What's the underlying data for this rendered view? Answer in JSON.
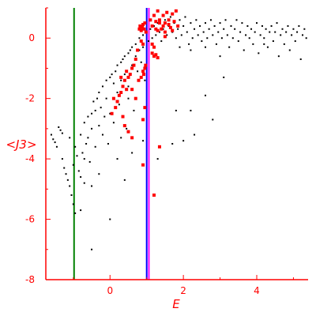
{
  "chart_data": {
    "type": "scatter",
    "xlabel": "E",
    "ylabel": "<J3>",
    "xlim": [
      -1.75,
      5.4
    ],
    "ylim": [
      -8,
      1
    ],
    "xticks": [
      0,
      2,
      4
    ],
    "yticks": [
      0,
      -2,
      -4,
      -6,
      -8
    ],
    "grid": false,
    "colors": {
      "axis": "#ff0000",
      "green_line": "#008000",
      "blue_line": "#0000ff",
      "magenta_line": "#ff00ff",
      "black_points": "#000000",
      "red_points": "#ff0000"
    },
    "vlines": [
      {
        "x": -0.98,
        "color": "#008000"
      },
      {
        "x": 1.0,
        "color": "#0000ff"
      },
      {
        "x": 1.06,
        "color": "#ff00ff"
      }
    ],
    "series": [
      {
        "color": "#000000",
        "points": [
          [
            -1.6,
            -3.2
          ],
          [
            -1.55,
            -3.35
          ],
          [
            -1.5,
            -3.45
          ],
          [
            -1.45,
            -3.6
          ],
          [
            -1.4,
            -2.95
          ],
          [
            -1.35,
            -3.05
          ],
          [
            -1.3,
            -3.15
          ],
          [
            -1.3,
            -4.0
          ],
          [
            -1.25,
            -4.3
          ],
          [
            -1.2,
            -4.5
          ],
          [
            -1.15,
            -4.7
          ],
          [
            -1.1,
            -4.9
          ],
          [
            -1.05,
            -5.2
          ],
          [
            -1.0,
            -5.5
          ],
          [
            -1.0,
            -4.2
          ],
          [
            -1.1,
            -3.3
          ],
          [
            -0.95,
            -3.6
          ],
          [
            -0.9,
            -3.9
          ],
          [
            -0.85,
            -4.4
          ],
          [
            -0.8,
            -4.6
          ],
          [
            -0.8,
            -3.2
          ],
          [
            -0.75,
            -3.8
          ],
          [
            -0.7,
            -2.8
          ],
          [
            -0.7,
            -4.0
          ],
          [
            -0.65,
            -3.5
          ],
          [
            -0.6,
            -2.6
          ],
          [
            -0.6,
            -3.3
          ],
          [
            -0.55,
            -4.1
          ],
          [
            -0.5,
            -2.5
          ],
          [
            -0.5,
            -3.0
          ],
          [
            -0.45,
            -2.1
          ],
          [
            -0.4,
            -2.4
          ],
          [
            -0.4,
            -3.6
          ],
          [
            -0.35,
            -2.0
          ],
          [
            -0.3,
            -1.8
          ],
          [
            -0.3,
            -2.9
          ],
          [
            -0.25,
            -2.3
          ],
          [
            -0.2,
            -1.6
          ],
          [
            -0.2,
            -3.2
          ],
          [
            -0.15,
            -2.6
          ],
          [
            -0.1,
            -1.4
          ],
          [
            -0.1,
            -2.0
          ],
          [
            -0.05,
            -3.5
          ],
          [
            0.0,
            -1.3
          ],
          [
            0.0,
            -2.5
          ],
          [
            0.05,
            -1.2
          ],
          [
            0.1,
            -1.5
          ],
          [
            0.1,
            -2.8
          ],
          [
            0.15,
            -1.1
          ],
          [
            0.2,
            -0.9
          ],
          [
            0.2,
            -1.8
          ],
          [
            0.25,
            -2.2
          ],
          [
            0.3,
            -0.8
          ],
          [
            0.3,
            -1.4
          ],
          [
            0.35,
            -0.7
          ],
          [
            0.4,
            -0.6
          ],
          [
            0.4,
            -1.2
          ],
          [
            0.45,
            -3.0
          ],
          [
            0.5,
            -0.5
          ],
          [
            0.5,
            -1.6
          ],
          [
            0.55,
            -0.4
          ],
          [
            0.6,
            -0.3
          ],
          [
            0.6,
            -0.9
          ],
          [
            0.65,
            -2.4
          ],
          [
            0.7,
            -0.2
          ],
          [
            0.7,
            -0.6
          ],
          [
            0.75,
            -1.1
          ],
          [
            0.8,
            0.0
          ],
          [
            0.8,
            -0.4
          ],
          [
            0.85,
            -0.8
          ],
          [
            0.9,
            0.1
          ],
          [
            0.9,
            -0.3
          ],
          [
            0.95,
            -1.4
          ],
          [
            1.0,
            0.2
          ],
          [
            1.05,
            -0.1
          ],
          [
            1.1,
            0.3
          ],
          [
            1.15,
            0.0
          ],
          [
            1.2,
            0.4
          ],
          [
            1.25,
            0.1
          ],
          [
            1.3,
            0.5
          ],
          [
            1.35,
            0.2
          ],
          [
            1.4,
            -0.1
          ],
          [
            1.45,
            0.3
          ],
          [
            1.5,
            0.6
          ],
          [
            1.55,
            0.1
          ],
          [
            1.6,
            0.4
          ],
          [
            1.65,
            0.7
          ],
          [
            1.7,
            0.2
          ],
          [
            1.75,
            0.5
          ],
          [
            1.8,
            0.0
          ],
          [
            1.85,
            0.3
          ],
          [
            1.9,
            0.6
          ],
          [
            1.95,
            0.1
          ],
          [
            2.0,
            0.4
          ],
          [
            2.05,
            0.7
          ],
          [
            2.1,
            0.2
          ],
          [
            2.15,
            -0.2
          ],
          [
            2.2,
            0.5
          ],
          [
            2.25,
            0.0
          ],
          [
            2.3,
            0.3
          ],
          [
            2.35,
            0.6
          ],
          [
            2.4,
            0.1
          ],
          [
            2.45,
            0.4
          ],
          [
            2.5,
            -0.1
          ],
          [
            2.55,
            0.2
          ],
          [
            2.6,
            0.5
          ],
          [
            2.65,
            0.0
          ],
          [
            2.7,
            0.3
          ],
          [
            2.75,
            0.6
          ],
          [
            2.8,
            0.1
          ],
          [
            2.85,
            0.4
          ],
          [
            2.9,
            -0.2
          ],
          [
            2.95,
            0.2
          ],
          [
            3.0,
            0.5
          ],
          [
            3.05,
            0.0
          ],
          [
            3.1,
            0.3
          ],
          [
            3.15,
            0.6
          ],
          [
            3.2,
            0.1
          ],
          [
            3.25,
            -0.3
          ],
          [
            3.3,
            0.4
          ],
          [
            3.35,
            0.0
          ],
          [
            3.4,
            0.3
          ],
          [
            3.45,
            0.6
          ],
          [
            3.5,
            -0.1
          ],
          [
            3.55,
            0.2
          ],
          [
            3.6,
            0.5
          ],
          [
            3.65,
            -0.4
          ],
          [
            3.7,
            0.1
          ],
          [
            3.75,
            0.4
          ],
          [
            3.8,
            0.0
          ],
          [
            3.85,
            0.3
          ],
          [
            3.9,
            -0.2
          ],
          [
            3.95,
            0.2
          ],
          [
            4.0,
            0.5
          ],
          [
            4.05,
            -0.5
          ],
          [
            4.1,
            0.1
          ],
          [
            4.15,
            0.4
          ],
          [
            4.2,
            0.0
          ],
          [
            4.25,
            0.3
          ],
          [
            4.3,
            -0.3
          ],
          [
            4.35,
            0.2
          ],
          [
            4.4,
            0.4
          ],
          [
            4.45,
            -0.1
          ],
          [
            4.5,
            0.2
          ],
          [
            4.55,
            0.5
          ],
          [
            4.6,
            -0.6
          ],
          [
            4.65,
            0.1
          ],
          [
            4.7,
            0.3
          ],
          [
            4.75,
            -0.2
          ],
          [
            4.8,
            0.2
          ],
          [
            4.85,
            0.4
          ],
          [
            4.9,
            -0.4
          ],
          [
            4.95,
            0.1
          ],
          [
            5.0,
            0.3
          ],
          [
            5.05,
            -0.1
          ],
          [
            5.1,
            0.2
          ],
          [
            5.15,
            0.4
          ],
          [
            5.2,
            -0.7
          ],
          [
            5.25,
            0.1
          ],
          [
            5.3,
            0.3
          ],
          [
            5.35,
            0.0
          ],
          [
            3.0,
            -0.6
          ],
          [
            2.2,
            -0.4
          ],
          [
            2.6,
            -0.3
          ],
          [
            4.2,
            -0.2
          ],
          [
            1.9,
            -0.3
          ],
          [
            0.4,
            -4.7
          ],
          [
            0.0,
            -6.0
          ],
          [
            -0.5,
            -7.0
          ],
          [
            -0.95,
            -5.8
          ],
          [
            -0.5,
            -4.9
          ],
          [
            -0.8,
            -5.7
          ],
          [
            1.3,
            -4.0
          ],
          [
            1.7,
            -3.5
          ],
          [
            2.0,
            -3.4
          ],
          [
            2.3,
            -3.2
          ],
          [
            2.2,
            -2.4
          ],
          [
            1.8,
            -2.4
          ],
          [
            2.6,
            -1.9
          ],
          [
            2.8,
            -2.7
          ],
          [
            3.1,
            -1.3
          ],
          [
            0.6,
            -3.8
          ],
          [
            0.9,
            -3.4
          ],
          [
            0.2,
            -4.0
          ],
          [
            -0.3,
            -4.5
          ],
          [
            -0.7,
            -4.8
          ],
          [
            0.5,
            -2.0
          ],
          [
            0.3,
            -3.3
          ]
        ]
      },
      {
        "color": "#ff0000",
        "points": [
          [
            0.8,
            0.3
          ],
          [
            0.82,
            0.4
          ],
          [
            0.85,
            0.25
          ],
          [
            0.88,
            0.35
          ],
          [
            0.9,
            0.45
          ],
          [
            0.93,
            0.3
          ],
          [
            0.95,
            0.5
          ],
          [
            0.98,
            0.2
          ],
          [
            1.1,
            0.6
          ],
          [
            1.15,
            0.4
          ],
          [
            1.2,
            0.75
          ],
          [
            1.25,
            0.55
          ],
          [
            1.3,
            0.9
          ],
          [
            1.35,
            0.6
          ],
          [
            1.4,
            0.3
          ],
          [
            1.45,
            0.75
          ],
          [
            1.5,
            0.5
          ],
          [
            1.55,
            0.85
          ],
          [
            1.6,
            0.6
          ],
          [
            1.65,
            0.35
          ],
          [
            1.7,
            0.8
          ],
          [
            1.75,
            0.55
          ],
          [
            1.8,
            0.9
          ],
          [
            1.85,
            0.4
          ],
          [
            1.3,
            0.25
          ],
          [
            1.35,
            0.5
          ],
          [
            1.5,
            0.2
          ],
          [
            1.6,
            0.45
          ],
          [
            1.7,
            0.25
          ],
          [
            1.25,
            0.3
          ],
          [
            1.45,
            0.4
          ],
          [
            1.15,
            -0.5
          ],
          [
            1.2,
            -0.6
          ],
          [
            1.25,
            -0.55
          ],
          [
            1.3,
            -0.65
          ],
          [
            0.85,
            -0.1
          ],
          [
            0.9,
            -0.2
          ],
          [
            0.75,
            -0.4
          ],
          [
            0.7,
            -0.7
          ],
          [
            0.65,
            -0.9
          ],
          [
            0.6,
            -1.0
          ],
          [
            0.55,
            -1.2
          ],
          [
            0.5,
            -1.3
          ],
          [
            0.45,
            -1.1
          ],
          [
            0.4,
            -1.4
          ],
          [
            0.35,
            -1.6
          ],
          [
            0.3,
            -1.8
          ],
          [
            0.25,
            -1.9
          ],
          [
            0.2,
            -2.1
          ],
          [
            0.15,
            -2.3
          ],
          [
            0.1,
            -2.0
          ],
          [
            0.05,
            -2.5
          ],
          [
            0.35,
            -2.6
          ],
          [
            0.4,
            -2.9
          ],
          [
            0.5,
            -3.1
          ],
          [
            0.6,
            -3.3
          ],
          [
            0.95,
            -1.0
          ],
          [
            0.9,
            -1.1
          ],
          [
            0.92,
            -1.2
          ],
          [
            0.85,
            -1.3
          ],
          [
            0.97,
            -0.9
          ],
          [
            0.78,
            -1.4
          ],
          [
            0.95,
            -2.3
          ],
          [
            0.9,
            -2.7
          ],
          [
            0.7,
            -2.0
          ],
          [
            0.6,
            -1.7
          ],
          [
            0.3,
            -1.3
          ],
          [
            0.45,
            -1.7
          ],
          [
            0.9,
            -4.2
          ],
          [
            1.35,
            -3.6
          ],
          [
            1.2,
            -5.2
          ],
          [
            1.15,
            -0.2
          ],
          [
            1.2,
            -0.3
          ],
          [
            1.5,
            0.05
          ]
        ]
      }
    ]
  }
}
